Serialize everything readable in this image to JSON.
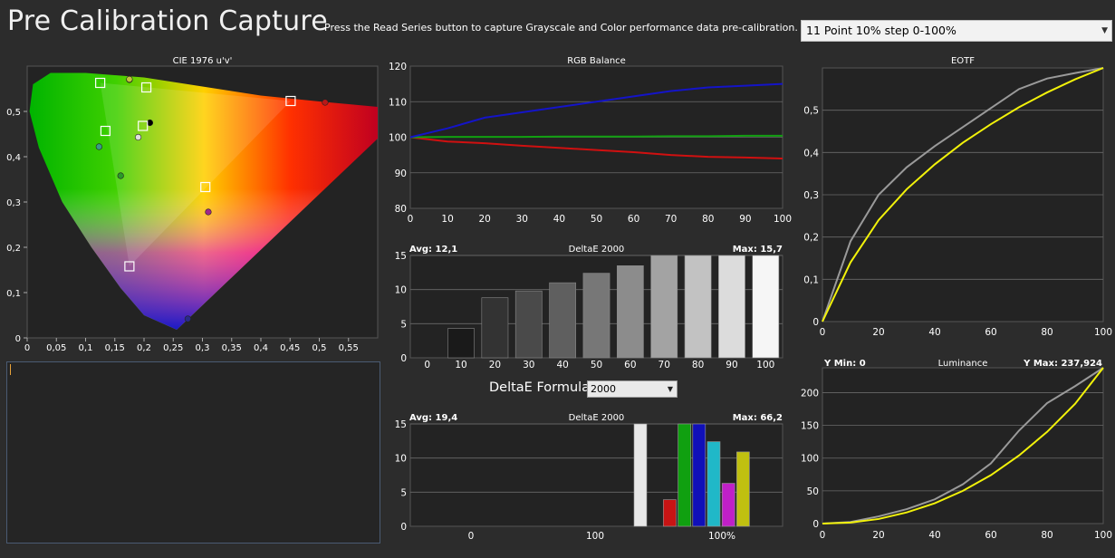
{
  "header": {
    "title": "Pre Calibration Capture",
    "instructions": "Press the Read Series button to capture Grayscale and Color performance data pre-calibration.",
    "series_select": "11 Point 10% step 0-100%"
  },
  "formula": {
    "label": "DeltaE Formula",
    "value": "2000"
  },
  "colors": {
    "red": "#d01010",
    "green": "#11a011",
    "blue": "#1414c8",
    "yellow": "#f2f20a",
    "gray": "#9a9a9a",
    "panel": "#232323",
    "grid": "#6a6a6a"
  },
  "chart_data": [
    {
      "type": "scatter",
      "title": "CIE 1976 u'v'",
      "xlim": [
        0,
        0.6
      ],
      "ylim": [
        0,
        0.6
      ],
      "x_ticks": [
        "0",
        "0,05",
        "0,1",
        "0,15",
        "0,2",
        "0,25",
        "0,3",
        "0,35",
        "0,4",
        "0,45",
        "0,5",
        "0,55"
      ],
      "y_ticks": [
        "0",
        "0,1",
        "0,2",
        "0,3",
        "0,4",
        "0,5"
      ],
      "targets": [
        {
          "name": "red",
          "x": 0.451,
          "y": 0.523
        },
        {
          "name": "green",
          "x": 0.125,
          "y": 0.563
        },
        {
          "name": "blue",
          "x": 0.175,
          "y": 0.158
        },
        {
          "name": "yellow",
          "x": 0.204,
          "y": 0.553
        },
        {
          "name": "cyan",
          "x": 0.134,
          "y": 0.457
        },
        {
          "name": "magenta",
          "x": 0.305,
          "y": 0.333
        },
        {
          "name": "white",
          "x": 0.198,
          "y": 0.468
        }
      ],
      "measured": [
        {
          "name": "red",
          "x": 0.51,
          "y": 0.52,
          "color": "#b81818"
        },
        {
          "name": "green",
          "x": 0.175,
          "y": 0.57,
          "color": "#a6b82a"
        },
        {
          "name": "blue",
          "x": 0.275,
          "y": 0.042,
          "color": "#2a2a8a"
        },
        {
          "name": "yellow",
          "x": 0.175,
          "y": 0.571,
          "color": "#c4c040"
        },
        {
          "name": "cyan",
          "x": 0.123,
          "y": 0.422,
          "color": "#3a9a8a"
        },
        {
          "name": "magenta",
          "x": 0.31,
          "y": 0.278,
          "color": "#a0288a"
        },
        {
          "name": "green2",
          "x": 0.16,
          "y": 0.358,
          "color": "#2a9a2a"
        },
        {
          "name": "white",
          "x": 0.19,
          "y": 0.443,
          "color": "#e0e0e0"
        },
        {
          "name": "black",
          "x": 0.21,
          "y": 0.475,
          "color": "#000000"
        }
      ]
    },
    {
      "type": "line",
      "title": "RGB Balance",
      "x": [
        0,
        10,
        20,
        30,
        40,
        50,
        60,
        70,
        80,
        90,
        100
      ],
      "xlim": [
        0,
        100
      ],
      "ylim": [
        80,
        120
      ],
      "x_ticks": [
        "0",
        "10",
        "20",
        "30",
        "40",
        "50",
        "60",
        "70",
        "80",
        "90",
        "100"
      ],
      "y_ticks": [
        "80",
        "90",
        "100",
        "110",
        "120"
      ],
      "series": [
        {
          "color": "#d01010",
          "values": [
            100,
            98.8,
            98.3,
            97.6,
            97,
            96.4,
            95.8,
            95,
            94.5,
            94.3,
            94
          ]
        },
        {
          "color": "#11a011",
          "values": [
            100,
            100.1,
            100.1,
            100.1,
            100.2,
            100.2,
            100.2,
            100.3,
            100.3,
            100.4,
            100.4
          ]
        },
        {
          "color": "#1414c8",
          "values": [
            100,
            102.5,
            105.5,
            107,
            108.5,
            110,
            111.5,
            113,
            114,
            114.5,
            115
          ]
        }
      ]
    },
    {
      "type": "bar",
      "title": "DeltaE 2000",
      "avg": "Avg: 12,1",
      "max": "Max: 15,7",
      "categories": [
        "0",
        "10",
        "20",
        "30",
        "40",
        "50",
        "60",
        "70",
        "80",
        "90",
        "100"
      ],
      "values": [
        0,
        4.3,
        8.8,
        9.8,
        11,
        12.4,
        13.5,
        15,
        15,
        15,
        15
      ],
      "colors": [
        "#000000",
        "#1a1a1a",
        "#333333",
        "#4a4a4a",
        "#5f5f5f",
        "#777777",
        "#8c8c8c",
        "#a3a3a3",
        "#c2c2c2",
        "#dcdcdc",
        "#f6f6f6"
      ],
      "ylim": [
        0,
        15
      ],
      "y_ticks": [
        "0",
        "5",
        "10",
        "15"
      ]
    },
    {
      "type": "bar",
      "title": "DeltaE 2000",
      "avg": "Avg: 19,4",
      "max": "Max: 66,2",
      "x_ticks": [
        "0",
        "100",
        "100%"
      ],
      "bars": [
        {
          "label": "white",
          "value": 15,
          "color": "#e8e8e8",
          "slot": 0
        },
        {
          "label": "red",
          "value": 3.9,
          "color": "#c81414",
          "slot": 2
        },
        {
          "label": "green",
          "value": 15,
          "color": "#10a010",
          "slot": 3
        },
        {
          "label": "blue",
          "value": 15,
          "color": "#1010b8",
          "slot": 4
        },
        {
          "label": "cyan",
          "value": 12.4,
          "color": "#20b8c8",
          "slot": 5
        },
        {
          "label": "magenta",
          "value": 6.3,
          "color": "#c020c8",
          "slot": 6
        },
        {
          "label": "yellow",
          "value": 10.9,
          "color": "#c0c010",
          "slot": 7
        }
      ],
      "ylim": [
        0,
        15
      ],
      "y_ticks": [
        "0",
        "5",
        "10",
        "15"
      ]
    },
    {
      "type": "line",
      "title": "EOTF",
      "x": [
        0,
        10,
        20,
        30,
        40,
        50,
        60,
        70,
        80,
        90,
        100
      ],
      "xlim": [
        0,
        100
      ],
      "ylim": [
        0,
        0.6
      ],
      "x_ticks": [
        "0",
        "20",
        "40",
        "60",
        "80",
        "100"
      ],
      "y_ticks": [
        "0",
        "0,1",
        "0,2",
        "0,3",
        "0,4",
        "0,5"
      ],
      "series": [
        {
          "color": "#9a9a9a",
          "values": [
            0,
            0.19,
            0.3,
            0.365,
            0.415,
            0.46,
            0.505,
            0.55,
            0.575,
            0.588,
            0.6
          ]
        },
        {
          "color": "#f2f20a",
          "values": [
            0,
            0.14,
            0.24,
            0.313,
            0.372,
            0.423,
            0.467,
            0.507,
            0.542,
            0.573,
            0.6
          ]
        }
      ]
    },
    {
      "type": "line",
      "title": "Luminance",
      "ymin_label": "Y Min: 0",
      "ymax_label": "Y Max: 237,924",
      "x": [
        0,
        10,
        20,
        30,
        40,
        50,
        60,
        70,
        80,
        90,
        100
      ],
      "xlim": [
        0,
        100
      ],
      "ylim": [
        0,
        238
      ],
      "x_ticks": [
        "0",
        "20",
        "40",
        "60",
        "80",
        "100"
      ],
      "y_ticks": [
        "0",
        "50",
        "100",
        "150",
        "200"
      ],
      "series": [
        {
          "color": "#9a9a9a",
          "values": [
            0,
            2.5,
            11,
            22,
            37,
            60,
            92,
            142,
            184,
            210,
            238
          ]
        },
        {
          "color": "#f2f20a",
          "values": [
            0,
            1.5,
            7,
            17,
            31,
            50,
            74,
            104,
            140,
            183,
            238
          ]
        }
      ]
    }
  ]
}
